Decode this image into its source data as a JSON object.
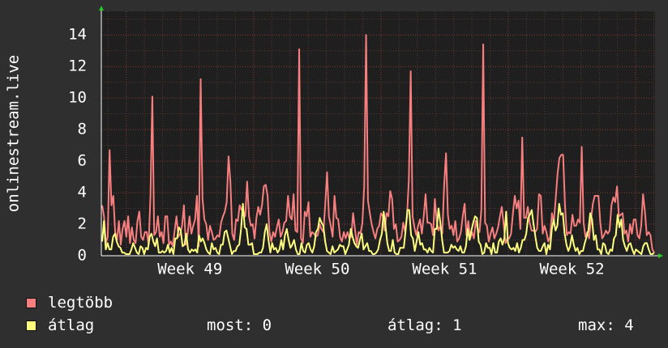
{
  "chart_data": {
    "type": "line",
    "ylabel": "onlinestream.live",
    "ylim": [
      0,
      15.5
    ],
    "yticks": [
      0,
      2,
      4,
      6,
      8,
      10,
      12,
      14
    ],
    "x_tick_labels": [
      "Week 49",
      "Week 50",
      "Week 51",
      "Week 52"
    ],
    "grid": true,
    "legend_placement": "bottom-left",
    "series": [
      {
        "name": "legtöbb",
        "color": "#f77f7f",
        "values": [
          3.2,
          2.5,
          0.8,
          1.2,
          6.7,
          3.2,
          3.8,
          1.5,
          1.0,
          2.2,
          0.7,
          1.7,
          2.2,
          1.2,
          2.5,
          0.8,
          1.8,
          1.0,
          0.8,
          2.2,
          2.8,
          1.2,
          1.0,
          1.5,
          1.5,
          0.7,
          3.8,
          10.1,
          1.3,
          1.5,
          2.5,
          1.2,
          1.5,
          0.8,
          2.5,
          2.5,
          0.7,
          0.9,
          0.6,
          1.6,
          2.5,
          1.2,
          1.4,
          1.9,
          3.2,
          0.7,
          1.4,
          2.5,
          1.4,
          1.9,
          2.3,
          3.8,
          0.6,
          11.2,
          3.6,
          2.3,
          2.0,
          1.0,
          1.9,
          1.5,
          1.0,
          1.1,
          1.3,
          1.2,
          2.1,
          2.5,
          2.8,
          3.4,
          6.3,
          4.7,
          1.4,
          1.0,
          2.3,
          2.2,
          3.2,
          2.9,
          2.8,
          2.5,
          4.7,
          2.5,
          1.9,
          2.0,
          1.1,
          2.4,
          3.1,
          2.6,
          3.2,
          4.4,
          4.5,
          3.8,
          1.5,
          0.9,
          1.5,
          1.2,
          1.8,
          2.3,
          1.2,
          1.5,
          2.1,
          2.2,
          3.8,
          2.5,
          2.3,
          3.9,
          1.6,
          1.5,
          13.1,
          1.1,
          0.8,
          2.8,
          2.5,
          3.4,
          1.2,
          1.5,
          1.4,
          1.2,
          1.3,
          2.0,
          1.7,
          1.5,
          3.2,
          5.3,
          2.5,
          1.9,
          1.2,
          3.8,
          2.4,
          2.3,
          1.2,
          0.9,
          1.5,
          1.1,
          1.5,
          1.1,
          1.2,
          2.7,
          1.7,
          0.7,
          1.5,
          1.4,
          2.1,
          4.4,
          14.0,
          3.5,
          2.7,
          2.0,
          1.5,
          1.1,
          1.7,
          1.9,
          2.7,
          2.5,
          1.6,
          2.7,
          2.5,
          4.1,
          3.6,
          1.7,
          2.0,
          0.9,
          1.0,
          1.2,
          2.1,
          1.5,
          2.5,
          4.8,
          11.7,
          2.5,
          1.8,
          1.3,
          1.9,
          2.3,
          1.4,
          2.5,
          3.9,
          2.1,
          2.1,
          2.0,
          1.3,
          3.6,
          2.2,
          1.6,
          1.9,
          1.4,
          4.5,
          6.5,
          2.6,
          1.7,
          1.9,
          1.3,
          2.2,
          0.9,
          1.1,
          1.5,
          2.5,
          3.3,
          1.3,
          2.2,
          1.1,
          1.5,
          1.1,
          2.2,
          1.7,
          1.5,
          2.9,
          13.4,
          2.1,
          1.9,
          0.9,
          1.4,
          1.8,
          1.1,
          1.4,
          1.8,
          2.5,
          3.1,
          2.0,
          0.8,
          1.1,
          1.1,
          1.4,
          2.7,
          3.8,
          3.0,
          3.5,
          1.7,
          7.5,
          2.4,
          2.4,
          3.1,
          2.1,
          1.6,
          1.6,
          1.5,
          1.7,
          3.9,
          3.8,
          1.4,
          1.9,
          1.5,
          0.9,
          1.2,
          2.7,
          2.1,
          3.6,
          5.2,
          6.2,
          6.4,
          6.4,
          3.2,
          1.3,
          1.5,
          1.4,
          2.6,
          1.9,
          1.9,
          2.3,
          2.1,
          6.9,
          2.1,
          1.2,
          1.5,
          1.1,
          2.3,
          3.3,
          3.8,
          3.8,
          3.8,
          2.1,
          1.1,
          1.3,
          1.6,
          1.4,
          1.6,
          3.2,
          3.7,
          3.4,
          4.4,
          2.5,
          2.6,
          2.7,
          1.4,
          1.6,
          0.9,
          2.0,
          1.4,
          2.3,
          2.3,
          1.3,
          1.1,
          1.9,
          3.9,
          2.8,
          1.3,
          1.5,
          1.3,
          0.4,
          0.2
        ]
      },
      {
        "name": "átlag",
        "color": "#ffff7f",
        "values": [
          0.9,
          2.2,
          0.4,
          0.8,
          0.4,
          0.4,
          1.2,
          1.4,
          0.9,
          0.6,
          0.5,
          0.2,
          0.2,
          0.1,
          0.1,
          0.1,
          0.4,
          0.8,
          0.5,
          0.2,
          0.1,
          0.6,
          0.5,
          0.1,
          0.5,
          0.4,
          1.2,
          1.4,
          0.9,
          0.6,
          1.1,
          0.2,
          0.2,
          0.3,
          0.2,
          0.3,
          0.7,
          0.2,
          0.5,
          0.1,
          1.1,
          1.1,
          1.8,
          1.6,
          0.6,
          0.7,
          1.4,
          0.4,
          0.2,
          0.4,
          0.3,
          0.4,
          0.2,
          1.3,
          0.9,
          1.1,
          0.8,
          0.4,
          0.2,
          0.1,
          0.8,
          0.4,
          0.5,
          0.2,
          0.1,
          0.7,
          0.7,
          1.5,
          1.6,
          1.1,
          0.6,
          0.1,
          0.3,
          0.3,
          0.6,
          0.7,
          1.7,
          3.3,
          1.8,
          1.7,
          0.7,
          0.7,
          0.8,
          0.1,
          0.1,
          0.1,
          0.2,
          0.2,
          0.5,
          1.5,
          2.0,
          1.0,
          0.2,
          0.8,
          0.4,
          0.5,
          0.2,
          0.4,
          1.0,
          0.4,
          1.3,
          1.7,
          1.0,
          0.5,
          0.7,
          1.0,
          0.4,
          0.1,
          0.1,
          0.8,
          0.3,
          0.2,
          0.7,
          0.8,
          0.4,
          0.2,
          0.6,
          1.5,
          1.7,
          2.4,
          2.1,
          1.9,
          0.9,
          0.3,
          0.2,
          0.1,
          0.6,
          0.2,
          0.3,
          0.4,
          0.7,
          0.6,
          0.6,
          0.1,
          0.4,
          0.7,
          1.7,
          1.2,
          0.8,
          0.6,
          0.5,
          1.0,
          1.4,
          0.4,
          0.6,
          0.8,
          0.3,
          0.3,
          0.1,
          0.1,
          0.2,
          0.4,
          1.0,
          1.4,
          2.8,
          1.9,
          0.8,
          0.3,
          0.3,
          1.0,
          0.2,
          0.1,
          0.1,
          0.5,
          0.5,
          0.5,
          1.6,
          2.9,
          2.9,
          1.3,
          1.1,
          0.3,
          0.9,
          1.5,
          0.7,
          0.8,
          0.4,
          0.4,
          0.2,
          0.5,
          0.3,
          0.2,
          1.7,
          1.7,
          3.0,
          2.1,
          1.0,
          0.2,
          0.2,
          0.2,
          0.3,
          0.7,
          0.5,
          0.6,
          0.4,
          0.3,
          0.6,
          0.2,
          0.2,
          0.6,
          1.7,
          1.0,
          1.6,
          2.1,
          2.5,
          2.4,
          0.9,
          0.7,
          0.1,
          0.2,
          0.8,
          0.5,
          0.5,
          0.1,
          0.8,
          0.2,
          0.2,
          0.9,
          1.1,
          0.7,
          1.1,
          2.8,
          0.8,
          0.5,
          0.4,
          0.5,
          0.3,
          0.8,
          0.2,
          0.5,
          1.0,
          1.0,
          1.4,
          2.4,
          2.6,
          2.9,
          2.0,
          1.2,
          0.5,
          0.3,
          0.3,
          0.6,
          0.8,
          0.1,
          0.7,
          0.4,
          1.7,
          2.3,
          1.6,
          1.9,
          3.3,
          2.6,
          2.7,
          1.4,
          0.7,
          0.3,
          0.6,
          1.3,
          0.7,
          0.3,
          0.5,
          0.1,
          0.3,
          0.3,
          0.8,
          1.2,
          1.6,
          2.7,
          2.3,
          1.0,
          1.3,
          0.4,
          0.4,
          0.1,
          0.8,
          0.7,
          0.2,
          0.1,
          0.4,
          0.3,
          1.1,
          1.3,
          2.6,
          1.8,
          2.3,
          1.0,
          0.6,
          0.3,
          0.7,
          0.8,
          0.4,
          0.1,
          0.4,
          0.3,
          0.2,
          0.1,
          0.6,
          0.8,
          0.8,
          0.4,
          0.1,
          0.1,
          0.2
        ]
      }
    ]
  },
  "legend": [
    {
      "label": "legtöbb",
      "color": "#f77f7f"
    },
    {
      "label": "átlag",
      "color": "#ffff7f"
    }
  ],
  "stats": {
    "now": "most: 0",
    "avg": "átlag: 1",
    "max": "max: 4"
  }
}
